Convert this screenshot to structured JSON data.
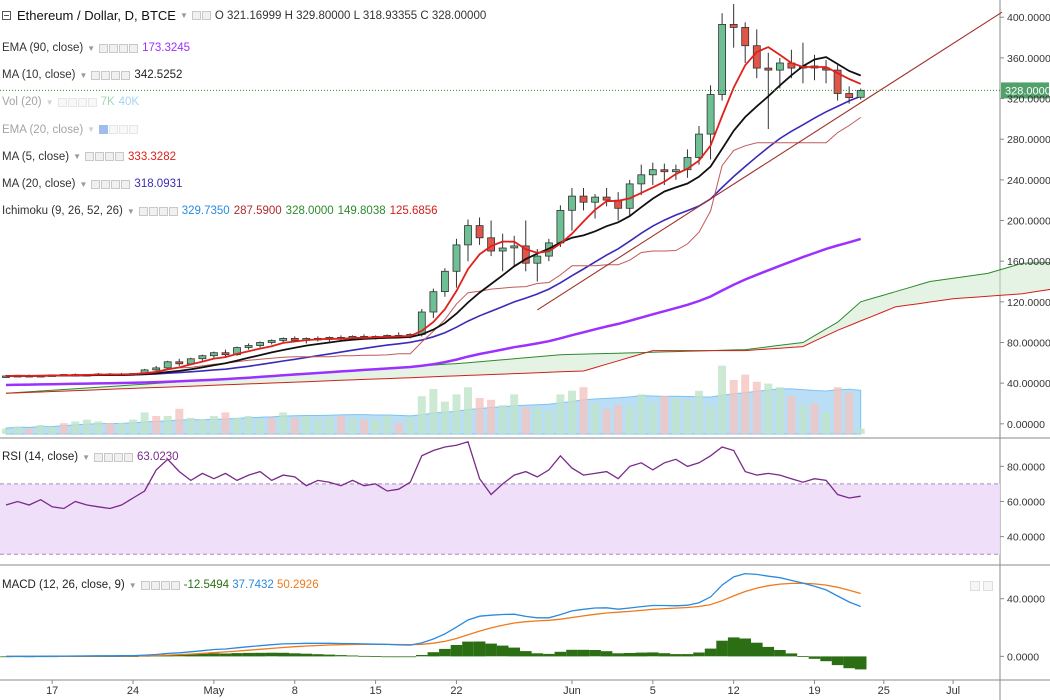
{
  "main_legend": {
    "symbol": "Ethereum / Dollar, D, BTCE",
    "ohlc": [
      {
        "k": "O",
        "v": "321.16999"
      },
      {
        "k": "H",
        "v": "329.80000"
      },
      {
        "k": "L",
        "v": "318.93355"
      },
      {
        "k": "C",
        "v": "328.00000"
      }
    ]
  },
  "indicators": [
    {
      "id": "ema90",
      "title": "EMA (90, close)",
      "values": [
        {
          "v": "173.3245",
          "color": "#9b30ff"
        }
      ]
    },
    {
      "id": "ma10",
      "title": "MA (10, close)",
      "values": [
        {
          "v": "342.5252",
          "color": "#222222"
        }
      ]
    },
    {
      "id": "vol20",
      "title": "Vol (20)",
      "faded": true,
      "values": [
        {
          "v": "7K",
          "color": "#26a65b"
        },
        {
          "v": "40K",
          "color": "#3aa0e0"
        }
      ]
    },
    {
      "id": "ema20",
      "title": "EMA (20, close)",
      "faded": true,
      "hidden_eye": true,
      "values": []
    },
    {
      "id": "ma5",
      "title": "MA (5, close)",
      "values": [
        {
          "v": "333.3282",
          "color": "#e0201b"
        }
      ]
    },
    {
      "id": "ma20",
      "title": "MA (20, close)",
      "values": [
        {
          "v": "318.0931",
          "color": "#3a2ab8"
        }
      ]
    },
    {
      "id": "ichimoku",
      "title": "Ichimoku (9, 26, 52, 26)",
      "values": [
        {
          "v": "329.7350",
          "color": "#2a8ae0"
        },
        {
          "v": "287.5900",
          "color": "#b02a2a"
        },
        {
          "v": "328.0000",
          "color": "#2c8a2c"
        },
        {
          "v": "149.8038",
          "color": "#2c8a2c"
        },
        {
          "v": "125.6856",
          "color": "#d0201b"
        }
      ]
    }
  ],
  "rsi_legend": {
    "title": "RSI (14, close)",
    "value": "63.0230",
    "color": "#7a2a8a"
  },
  "macd_legend": {
    "title": "MACD (12, 26, close, 9)",
    "values": [
      {
        "v": "-12.5494",
        "color": "#2c6e14"
      },
      {
        "v": "37.7432",
        "color": "#2a8ae0"
      },
      {
        "v": "50.2926",
        "color": "#f07a1b"
      }
    ]
  },
  "price_badge": "328.00000",
  "colors": {
    "up": "#6fbf94",
    "down": "#e0554a",
    "ma5": "#e0201b",
    "ma10": "#111111",
    "ma20": "#3a2ab8",
    "ema90": "#9b30ff",
    "kijun": "#d0201b",
    "span_b": "#d0201b",
    "span_a": "#2c8a2c",
    "rsi": "#7a2a8a",
    "macd": "#2a8ae0",
    "signal": "#f07a1b",
    "hist": "#2c6e14",
    "trendline": "#a0302a"
  },
  "chart_data": [
    {
      "type": "candlestick",
      "name": "Ethereum / Dollar, D, BTCE",
      "x_ticks": [
        {
          "i": 4,
          "label": "17"
        },
        {
          "i": 11,
          "label": "24"
        },
        {
          "i": 18,
          "label": "May"
        },
        {
          "i": 25,
          "label": "8"
        },
        {
          "i": 32,
          "label": "15"
        },
        {
          "i": 39,
          "label": "22"
        },
        {
          "i": 49,
          "label": "Jun"
        },
        {
          "i": 56,
          "label": "5"
        },
        {
          "i": 63,
          "label": "12"
        },
        {
          "i": 70,
          "label": "19"
        },
        {
          "i": 76,
          "label": "25"
        },
        {
          "i": 82,
          "label": "Jul"
        }
      ],
      "y_range": [
        -12,
        415
      ],
      "y_ticks": [
        {
          "v": 0,
          "label": "0.00000"
        },
        {
          "v": 40,
          "label": "40.00000"
        },
        {
          "v": 80,
          "label": "80.00000"
        },
        {
          "v": 120,
          "label": "120.00000"
        },
        {
          "v": 160,
          "label": "160.00000"
        },
        {
          "v": 200,
          "label": "200.00000"
        },
        {
          "v": 240,
          "label": "240.00000"
        },
        {
          "v": 280,
          "label": "280.00000"
        },
        {
          "v": 320,
          "label": "320.00000"
        },
        {
          "v": 360,
          "label": "360.00000"
        },
        {
          "v": 400,
          "label": "400.00000"
        }
      ],
      "last_price": 328,
      "candles": [
        [
          47,
          48,
          46,
          47
        ],
        [
          47,
          48,
          46,
          47.5
        ],
        [
          47.5,
          48.5,
          46.5,
          47
        ],
        [
          47,
          48,
          46,
          47.5
        ],
        [
          47.5,
          48.5,
          47,
          48
        ],
        [
          48,
          49,
          47,
          48.5
        ],
        [
          48.5,
          49.5,
          47.5,
          48
        ],
        [
          48,
          49,
          47,
          48.5
        ],
        [
          48.5,
          50,
          47.5,
          49
        ],
        [
          49,
          50,
          48,
          48.5
        ],
        [
          48.5,
          50,
          48,
          49
        ],
        [
          49,
          50,
          48,
          49.5
        ],
        [
          49.5,
          54,
          49,
          53
        ],
        [
          53,
          57,
          52,
          55
        ],
        [
          55,
          62,
          54,
          61
        ],
        [
          61,
          64,
          57,
          59
        ],
        [
          59,
          65,
          58,
          64
        ],
        [
          64,
          68,
          62,
          67
        ],
        [
          67,
          71,
          64,
          70
        ],
        [
          70,
          73,
          66,
          68
        ],
        [
          68,
          76,
          67,
          75
        ],
        [
          75,
          79,
          73,
          77
        ],
        [
          77,
          81,
          75,
          80
        ],
        [
          80,
          83,
          78,
          82
        ],
        [
          82,
          85,
          80,
          84
        ],
        [
          84,
          86,
          81,
          82
        ],
        [
          82,
          85,
          79,
          84
        ],
        [
          84,
          86,
          81,
          83
        ],
        [
          83,
          86,
          81,
          85
        ],
        [
          85,
          87,
          82,
          84
        ],
        [
          84,
          87,
          82,
          86
        ],
        [
          86,
          88,
          83,
          85
        ],
        [
          85,
          87,
          83,
          86
        ],
        [
          86,
          88,
          84,
          87
        ],
        [
          87,
          90,
          84,
          86
        ],
        [
          86,
          89,
          84,
          88
        ],
        [
          88,
          113,
          86,
          110
        ],
        [
          110,
          133,
          104,
          130
        ],
        [
          130,
          153,
          125,
          150
        ],
        [
          150,
          182,
          134,
          176
        ],
        [
          176,
          201,
          160,
          195
        ],
        [
          195,
          203,
          176,
          183
        ],
        [
          183,
          200,
          165,
          170
        ],
        [
          170,
          187,
          150,
          173
        ],
        [
          173,
          185,
          155,
          175
        ],
        [
          175,
          200,
          150,
          158
        ],
        [
          158,
          172,
          140,
          165
        ],
        [
          165,
          182,
          160,
          178
        ],
        [
          178,
          215,
          174,
          210
        ],
        [
          210,
          232,
          190,
          224
        ],
        [
          224,
          232,
          210,
          218
        ],
        [
          218,
          226,
          202,
          223
        ],
        [
          223,
          232,
          214,
          220
        ],
        [
          220,
          228,
          200,
          212
        ],
        [
          212,
          240,
          205,
          236
        ],
        [
          236,
          255,
          225,
          245
        ],
        [
          245,
          257,
          235,
          250
        ],
        [
          250,
          256,
          235,
          248
        ],
        [
          248,
          255,
          240,
          250
        ],
        [
          250,
          270,
          242,
          262
        ],
        [
          262,
          293,
          255,
          285
        ],
        [
          285,
          333,
          260,
          324
        ],
        [
          324,
          404,
          318,
          393
        ],
        [
          393,
          413,
          370,
          390
        ],
        [
          390,
          395,
          355,
          372
        ],
        [
          372,
          388,
          340,
          350
        ],
        [
          350,
          365,
          290,
          348
        ],
        [
          348,
          360,
          330,
          355
        ],
        [
          355,
          368,
          340,
          350
        ],
        [
          350,
          375,
          335,
          352
        ],
        [
          352,
          363,
          338,
          350
        ],
        [
          350,
          358,
          335,
          348
        ],
        [
          348,
          353,
          318,
          325
        ],
        [
          325,
          332,
          315,
          321
        ],
        [
          321.16999,
          329.8,
          318.93355,
          328
        ]
      ],
      "volume": [
        [
          3,
          "u"
        ],
        [
          4,
          "u"
        ],
        [
          3,
          "d"
        ],
        [
          5,
          "u"
        ],
        [
          4,
          "u"
        ],
        [
          6,
          "d"
        ],
        [
          7,
          "u"
        ],
        [
          8,
          "u"
        ],
        [
          7,
          "u"
        ],
        [
          6,
          "d"
        ],
        [
          6,
          "u"
        ],
        [
          8,
          "u"
        ],
        [
          12,
          "u"
        ],
        [
          10,
          "d"
        ],
        [
          10,
          "u"
        ],
        [
          14,
          "d"
        ],
        [
          9,
          "u"
        ],
        [
          8,
          "u"
        ],
        [
          10,
          "u"
        ],
        [
          12,
          "d"
        ],
        [
          9,
          "u"
        ],
        [
          10,
          "u"
        ],
        [
          8,
          "u"
        ],
        [
          9,
          "d"
        ],
        [
          12,
          "u"
        ],
        [
          9,
          "d"
        ],
        [
          10,
          "u"
        ],
        [
          8,
          "u"
        ],
        [
          9,
          "u"
        ],
        [
          10,
          "d"
        ],
        [
          9,
          "u"
        ],
        [
          8,
          "d"
        ],
        [
          8,
          "u"
        ],
        [
          10,
          "u"
        ],
        [
          6,
          "d"
        ],
        [
          9,
          "u"
        ],
        [
          21,
          "u"
        ],
        [
          25,
          "u"
        ],
        [
          18,
          "u"
        ],
        [
          22,
          "u"
        ],
        [
          26,
          "u"
        ],
        [
          20,
          "d"
        ],
        [
          19,
          "d"
        ],
        [
          16,
          "u"
        ],
        [
          22,
          "u"
        ],
        [
          15,
          "d"
        ],
        [
          15,
          "u"
        ],
        [
          13,
          "u"
        ],
        [
          22,
          "u"
        ],
        [
          24,
          "u"
        ],
        [
          26,
          "d"
        ],
        [
          17,
          "u"
        ],
        [
          14,
          "d"
        ],
        [
          16,
          "d"
        ],
        [
          15,
          "u"
        ],
        [
          22,
          "u"
        ],
        [
          17,
          "u"
        ],
        [
          21,
          "d"
        ],
        [
          20,
          "u"
        ],
        [
          19,
          "u"
        ],
        [
          24,
          "u"
        ],
        [
          16,
          "u"
        ],
        [
          38,
          "u"
        ],
        [
          30,
          "d"
        ],
        [
          33,
          "d"
        ],
        [
          29,
          "d"
        ],
        [
          28,
          "u"
        ],
        [
          26,
          "u"
        ],
        [
          21,
          "d"
        ],
        [
          16,
          "u"
        ],
        [
          17,
          "d"
        ],
        [
          12,
          "u"
        ],
        [
          26,
          "d"
        ],
        [
          23,
          "d"
        ],
        [
          3,
          "u"
        ]
      ],
      "ichimoku_cloud": {
        "span_a": [
          [
            0,
            30
          ],
          [
            40,
            60
          ],
          [
            48,
            68
          ],
          [
            58,
            71
          ],
          [
            64,
            73
          ],
          [
            69,
            80
          ],
          [
            72,
            100
          ],
          [
            74,
            120
          ],
          [
            80,
            140
          ],
          [
            85,
            148
          ],
          [
            88,
            158
          ],
          [
            96,
            160
          ],
          [
            99,
            170
          ],
          [
            104,
            197
          ]
        ],
        "span_b": [
          [
            0,
            30
          ],
          [
            50,
            52
          ],
          [
            56,
            72
          ],
          [
            64,
            72
          ],
          [
            69,
            76
          ],
          [
            72,
            92
          ],
          [
            77,
            115
          ],
          [
            82,
            123
          ],
          [
            88,
            128
          ],
          [
            92,
            135
          ],
          [
            96,
            148
          ],
          [
            104,
            152
          ]
        ]
      }
    },
    {
      "type": "line",
      "name": "RSI (14, close)",
      "y_range": [
        25,
        95
      ],
      "y_ticks": [
        {
          "v": 40,
          "label": "40.0000"
        },
        {
          "v": 60,
          "label": "60.0000"
        },
        {
          "v": 80,
          "label": "80.0000"
        }
      ],
      "band": [
        30,
        70
      ],
      "values": [
        58,
        60,
        58,
        61,
        57,
        56,
        60,
        58,
        57,
        56,
        58,
        62,
        66,
        78,
        84,
        77,
        72,
        76,
        73,
        76,
        72,
        75,
        77,
        72,
        75,
        74,
        69,
        72,
        71,
        69,
        72,
        69,
        70,
        66,
        67,
        71,
        86,
        89,
        91,
        92,
        94,
        73,
        64,
        70,
        75,
        77,
        74,
        78,
        86,
        79,
        75,
        76,
        77,
        73,
        80,
        82,
        78,
        82,
        84,
        80,
        82,
        86,
        91,
        89,
        77,
        75,
        76,
        75,
        73,
        71,
        73,
        72,
        64,
        62,
        63.023
      ]
    },
    {
      "type": "line",
      "name": "MACD (12, 26, close, 9)",
      "y_range": [
        -15,
        62
      ],
      "y_ticks": [
        {
          "v": 0,
          "label": "0.0000"
        },
        {
          "v": 40,
          "label": "40.0000"
        }
      ]
    }
  ]
}
